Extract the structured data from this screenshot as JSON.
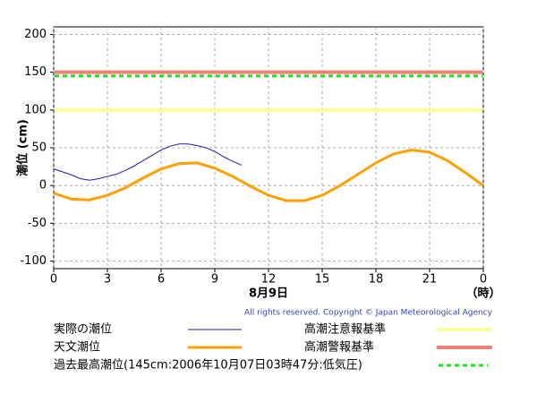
{
  "chart_data": {
    "type": "line",
    "ylabel": "潮位 (cm)",
    "xlabel": "8月9日",
    "xunit": "（時）",
    "copyright": "All rights reserved. Copyright © Japan Meteorological Agency",
    "xlim": [
      0,
      24
    ],
    "xticks": [
      0,
      3,
      6,
      9,
      12,
      15,
      18,
      21,
      {
        "value": 24,
        "label": "0"
      }
    ],
    "ylim": [
      -110,
      210
    ],
    "yticks": [
      -100,
      -50,
      0,
      50,
      100,
      150,
      200
    ],
    "grid": true,
    "series": [
      {
        "name": "実際の潮位",
        "color": "#3311aa",
        "x": [
          0,
          0.5,
          1,
          1.5,
          2,
          2.5,
          3,
          3.5,
          4,
          4.5,
          5,
          5.5,
          6,
          6.5,
          7,
          7.5,
          8,
          8.5,
          9,
          9.5,
          10,
          10.5
        ],
        "values": [
          22,
          18,
          14,
          9,
          7,
          9,
          12,
          15,
          20,
          26,
          33,
          40,
          47,
          52,
          55,
          55,
          53,
          50,
          45,
          38,
          32,
          27
        ]
      },
      {
        "name": "天文潮位",
        "color": "#ffa000",
        "x": [
          0,
          1,
          2,
          3,
          4,
          5,
          6,
          7,
          8,
          9,
          10,
          11,
          12,
          13,
          14,
          15,
          16,
          17,
          18,
          19,
          20,
          21,
          22,
          23,
          24
        ],
        "values": [
          -10,
          -18,
          -19,
          -13,
          -3,
          10,
          22,
          29,
          30,
          23,
          12,
          -1,
          -13,
          -20,
          -20,
          -13,
          0,
          15,
          30,
          42,
          47,
          44,
          33,
          17,
          0
        ]
      }
    ],
    "reference_lines": [
      {
        "name": "高潮注意報基準",
        "value": 100,
        "color": "#ffff99",
        "dashed": false
      },
      {
        "name": "高潮警報基準",
        "value": 150,
        "color": "#f08070",
        "dashed": false
      },
      {
        "name": "過去最高潮位(145cm:2006年10月07日03時47分:低気圧)",
        "value": 145,
        "color": "#22dd22",
        "dashed": true
      }
    ]
  }
}
